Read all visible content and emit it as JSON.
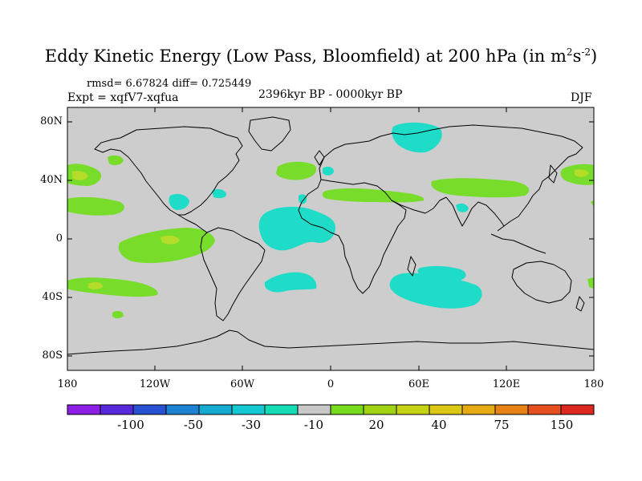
{
  "title": {
    "main": "Eddy Kinetic Energy (Low Pass, Bloomfield) at 200 hPa (in m",
    "sup1": "2",
    "mid": "s",
    "sup2": "-2",
    "end": ")"
  },
  "stats": "rmsd= 6.67824 diff= 0.725449",
  "experiment": "Expt = xqfV7-xqfua",
  "period": "2396kyr BP - 0000kyr BP",
  "season": "DJF",
  "lat_labels": [
    "80N",
    "40N",
    "0",
    "40S",
    "80S"
  ],
  "lon_labels": [
    "180",
    "120W",
    "60W",
    "0",
    "60E",
    "120E",
    "180"
  ],
  "colorbar": {
    "colors": [
      "#8c1ee6",
      "#5a28dc",
      "#2850d2",
      "#1e82d2",
      "#14aad2",
      "#14c8d2",
      "#14dcb4",
      "#c8c8c8",
      "#78dc1e",
      "#a0d214",
      "#c8d214",
      "#dcc814",
      "#e6aa14",
      "#e68214",
      "#e6501e",
      "#dc281e"
    ],
    "labels": [
      "-100",
      "-50",
      "-30",
      "-10",
      "20",
      "40",
      "75",
      "150"
    ]
  },
  "colors": {
    "ocean": "#cdcdcd",
    "cyan": "#1edcc8",
    "green": "#78dc2a",
    "yellowgreen": "#b4dc28"
  }
}
